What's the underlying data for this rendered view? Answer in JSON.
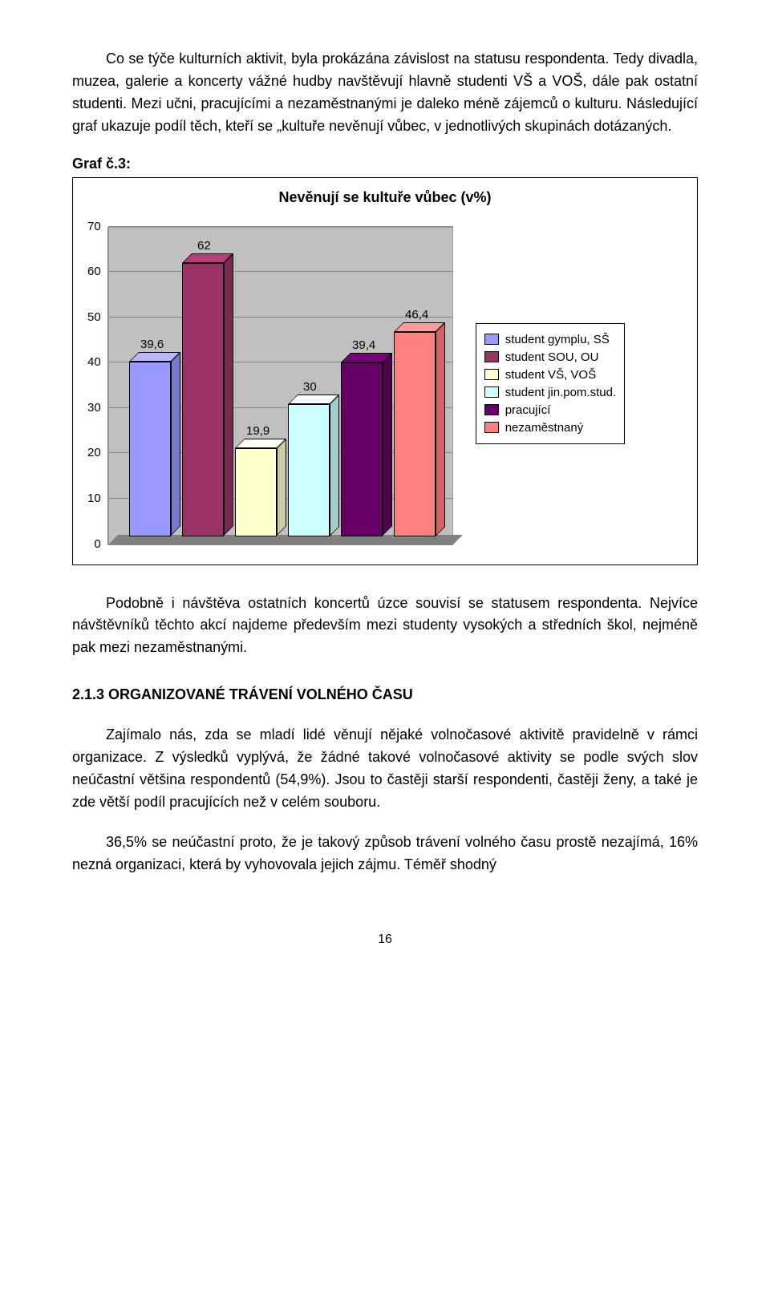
{
  "para1": "Co se týče kulturních aktivit, byla prokázána závislost na statusu respondenta. Tedy divadla, muzea, galerie a koncerty vážné hudby navštěvují hlavně studenti VŠ a VOŠ, dále pak ostatní studenti. Mezi učni, pracujícími a nezaměstnanými je daleko méně zájemců o kulturu. Následující graf ukazuje podíl těch, kteří se „kultuře nevěnují vůbec, v jednotlivých skupinách dotázaných.",
  "graf_label": "Graf č.3:",
  "chart": {
    "title": "Nevěnují se kultuře vůbec (v%)",
    "ylim_max": 70,
    "ytick_step": 10,
    "yticks": [
      "70",
      "60",
      "50",
      "40",
      "30",
      "20",
      "10",
      "0"
    ],
    "plot_bg": "#c0c0c0",
    "grid_color": "#888888",
    "label_fontsize": 15,
    "bars": [
      {
        "label": "39,6",
        "value": 39.6,
        "color": "#9999ff",
        "legend": "student gymplu, SŠ"
      },
      {
        "label": "62",
        "value": 62,
        "color": "#993366",
        "legend": "student SOU, OU"
      },
      {
        "label": "19,9",
        "value": 19.9,
        "color": "#ffffcc",
        "legend": "student VŠ, VOŠ"
      },
      {
        "label": "30",
        "value": 30,
        "color": "#ccffff",
        "legend": "student jin.pom.stud."
      },
      {
        "label": "39,4",
        "value": 39.4,
        "color": "#660066",
        "legend": "pracující"
      },
      {
        "label": "46,4",
        "value": 46.4,
        "color": "#ff8080",
        "legend": "nezaměstnaný"
      }
    ]
  },
  "para2": "Podobně i návštěva ostatních koncertů úzce souvisí se statusem respondenta. Nejvíce návštěvníků těchto akcí najdeme především mezi studenty vysokých a středních škol, nejméně pak mezi nezaměstnanými.",
  "section_heading": "2.1.3  ORGANIZOVANÉ TRÁVENÍ VOLNÉHO ČASU",
  "para3": "Zajímalo nás, zda se mladí lidé věnují nějaké volnočasové aktivitě pravidelně v rámci organizace. Z výsledků vyplývá, že žádné takové volnočasové aktivity se podle svých slov neúčastní většina respondentů (54,9%). Jsou to častěji starší respondenti, častěji ženy, a také je zde větší podíl pracujících než v celém souboru.",
  "para4": "36,5% se neúčastní proto, že je takový způsob trávení volného času prostě nezajímá, 16% nezná organizaci, která by vyhovovala jejich zájmu. Téměř shodný",
  "page_number": "16"
}
